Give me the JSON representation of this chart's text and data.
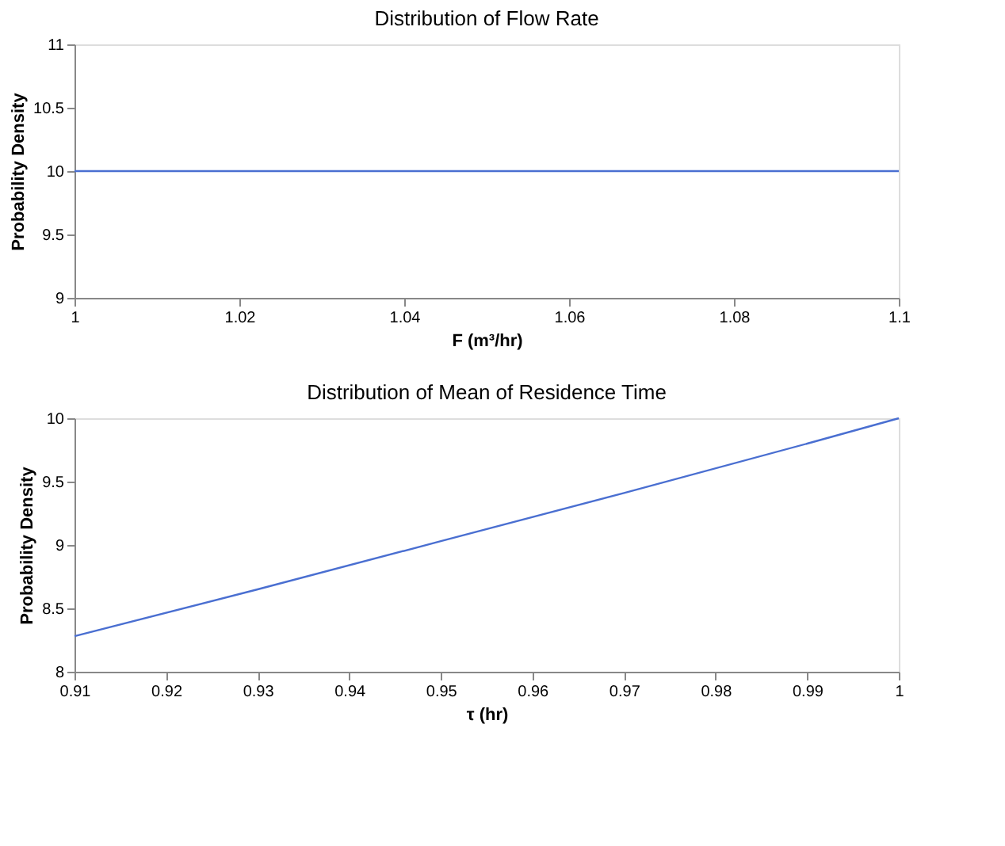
{
  "chart_data": [
    {
      "type": "line",
      "title": "Distribution of Flow Rate",
      "xlabel": "F (m³/hr)",
      "ylabel": "Probability Density",
      "x": [
        1,
        1.1
      ],
      "series": [
        {
          "color": "#4a6fd1",
          "values": [
            10,
            10
          ]
        }
      ],
      "xlim": [
        1,
        1.1
      ],
      "xticks": [
        1,
        1.02,
        1.04,
        1.06,
        1.08,
        1.1
      ],
      "ylim": [
        9,
        11
      ],
      "yticks": [
        9,
        9.5,
        10,
        10.5,
        11
      ],
      "grid": false
    },
    {
      "type": "line",
      "title": "Distribution of Mean of Residence Time",
      "xlabel": "τ (hr)",
      "ylabel": "Probability Density",
      "x": [
        0.91,
        0.93,
        0.95,
        0.97,
        0.99,
        1
      ],
      "series": [
        {
          "color": "#4a6fd1",
          "values": [
            8.28,
            8.65,
            9.03,
            9.41,
            9.8,
            10
          ]
        }
      ],
      "xlim": [
        0.91,
        1
      ],
      "xticks": [
        0.91,
        0.92,
        0.93,
        0.94,
        0.95,
        0.96,
        0.97,
        0.98,
        0.99,
        1
      ],
      "ylim": [
        8,
        10
      ],
      "yticks": [
        8,
        8.5,
        9,
        9.5,
        10
      ],
      "grid": false
    }
  ]
}
